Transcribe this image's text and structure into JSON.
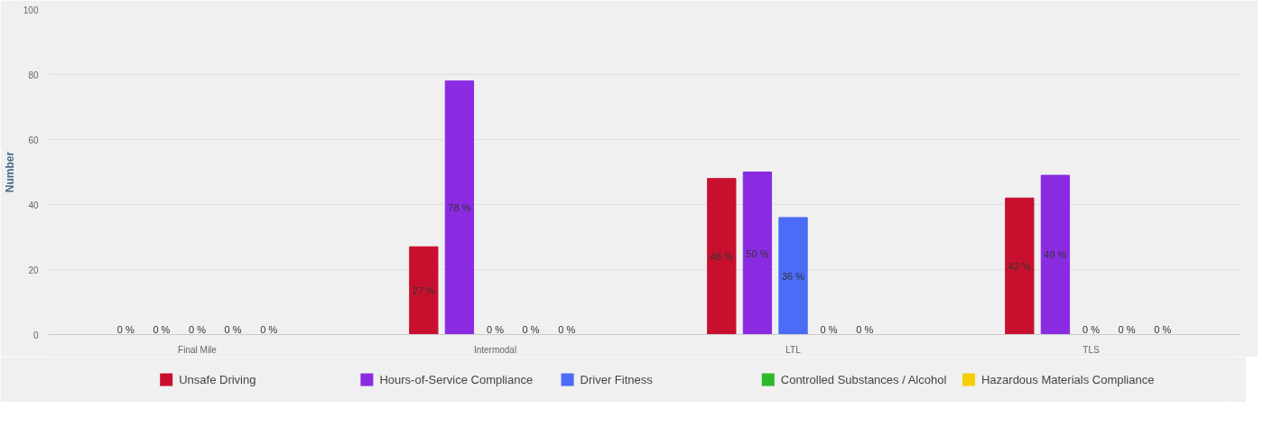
{
  "chart_data": {
    "type": "bar",
    "ylabel": "Number",
    "categories": [
      "Final Mile",
      "Intermodal",
      "LTL",
      "TLS"
    ],
    "series": [
      {
        "name": "Unsafe Driving",
        "color": "#c8102e",
        "values": [
          0,
          27,
          48,
          42
        ],
        "value_labels": [
          "0 %",
          "27 %",
          "48 %",
          "42 %"
        ]
      },
      {
        "name": "Hours-of-Service Compliance",
        "color": "#8a2be2",
        "values": [
          0,
          78,
          50,
          49
        ],
        "value_labels": [
          "0 %",
          "78 %",
          "50 %",
          "49 %"
        ]
      },
      {
        "name": "Driver Fitness",
        "color": "#4a6cf7",
        "values": [
          0,
          0,
          36,
          0
        ],
        "value_labels": [
          "0 %",
          "0 %",
          "36 %",
          "0 %"
        ]
      },
      {
        "name": "Controlled Substances / Alcohol",
        "color": "#2db82d",
        "values": [
          0,
          0,
          0,
          0
        ],
        "value_labels": [
          "0 %",
          "0 %",
          "0 %",
          "0 %"
        ]
      },
      {
        "name": "Hazardous Materials Compliance",
        "color": "#f5d000",
        "values": [
          0,
          0,
          0,
          0
        ],
        "value_labels": [
          "0 %",
          "0 %",
          "0 %",
          "0 %"
        ]
      }
    ],
    "ylim": [
      0,
      100
    ],
    "yticks": [
      0,
      20,
      40,
      60,
      80,
      100
    ],
    "grid": "y",
    "legend": "bottom"
  }
}
